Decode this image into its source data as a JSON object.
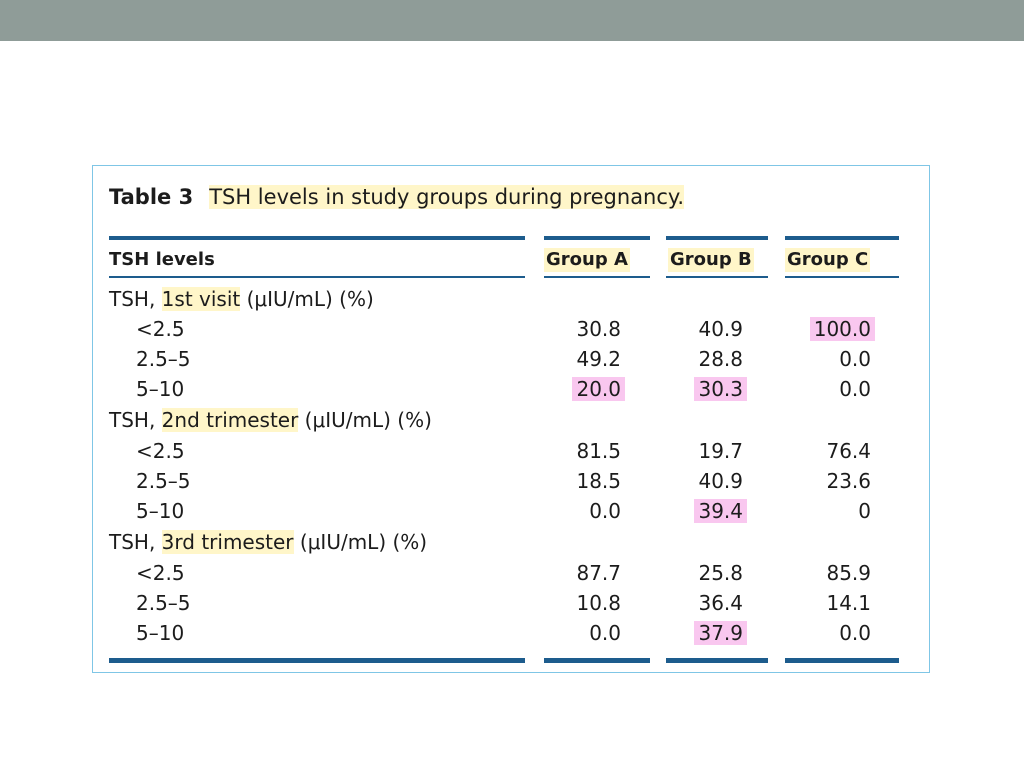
{
  "slide": {
    "table_number": "Table 3",
    "table_title": "TSH levels in study groups during pregnancy."
  },
  "table": {
    "headers": {
      "row_header": "TSH levels",
      "group_a": "Group A",
      "group_b": "Group B",
      "group_c": "Group C"
    },
    "sections": [
      {
        "prefix": "TSH, ",
        "highlighted": "1st visit",
        "suffix": " (μIU/mL) (%)",
        "rows": [
          {
            "label": "<2.5",
            "a": "30.8",
            "b": "40.9",
            "c": "100.0"
          },
          {
            "label": "2.5–5",
            "a": "49.2",
            "b": "28.8",
            "c": "0.0"
          },
          {
            "label": "5–10",
            "a": "20.0",
            "b": "30.3",
            "c": "0.0"
          }
        ]
      },
      {
        "prefix": "TSH, ",
        "highlighted": "2nd trimester",
        "suffix": " (μIU/mL) (%)",
        "rows": [
          {
            "label": "<2.5",
            "a": "81.5",
            "b": "19.7",
            "c": "76.4"
          },
          {
            "label": "2.5–5",
            "a": "18.5",
            "b": "40.9",
            "c": "23.6"
          },
          {
            "label": "5–10",
            "a": "0.0",
            "b": "39.4",
            "c": "0"
          }
        ]
      },
      {
        "prefix": "TSH, ",
        "highlighted": "3rd trimester",
        "suffix": " (μIU/mL) (%)",
        "rows": [
          {
            "label": "<2.5",
            "a": "87.7",
            "b": "25.8",
            "c": "85.9"
          },
          {
            "label": "2.5–5",
            "a": "10.8",
            "b": "36.4",
            "c": "14.1"
          },
          {
            "label": "5–10",
            "a": "0.0",
            "b": "37.9",
            "c": "0.0"
          }
        ]
      }
    ]
  },
  "colors": {
    "topbar": "#8f9c98",
    "rule": "#1d5c8d",
    "frame_border": "#7fc6e6",
    "highlight_yellow": "#fff6c9",
    "highlight_pink": "#f9c7ef"
  }
}
